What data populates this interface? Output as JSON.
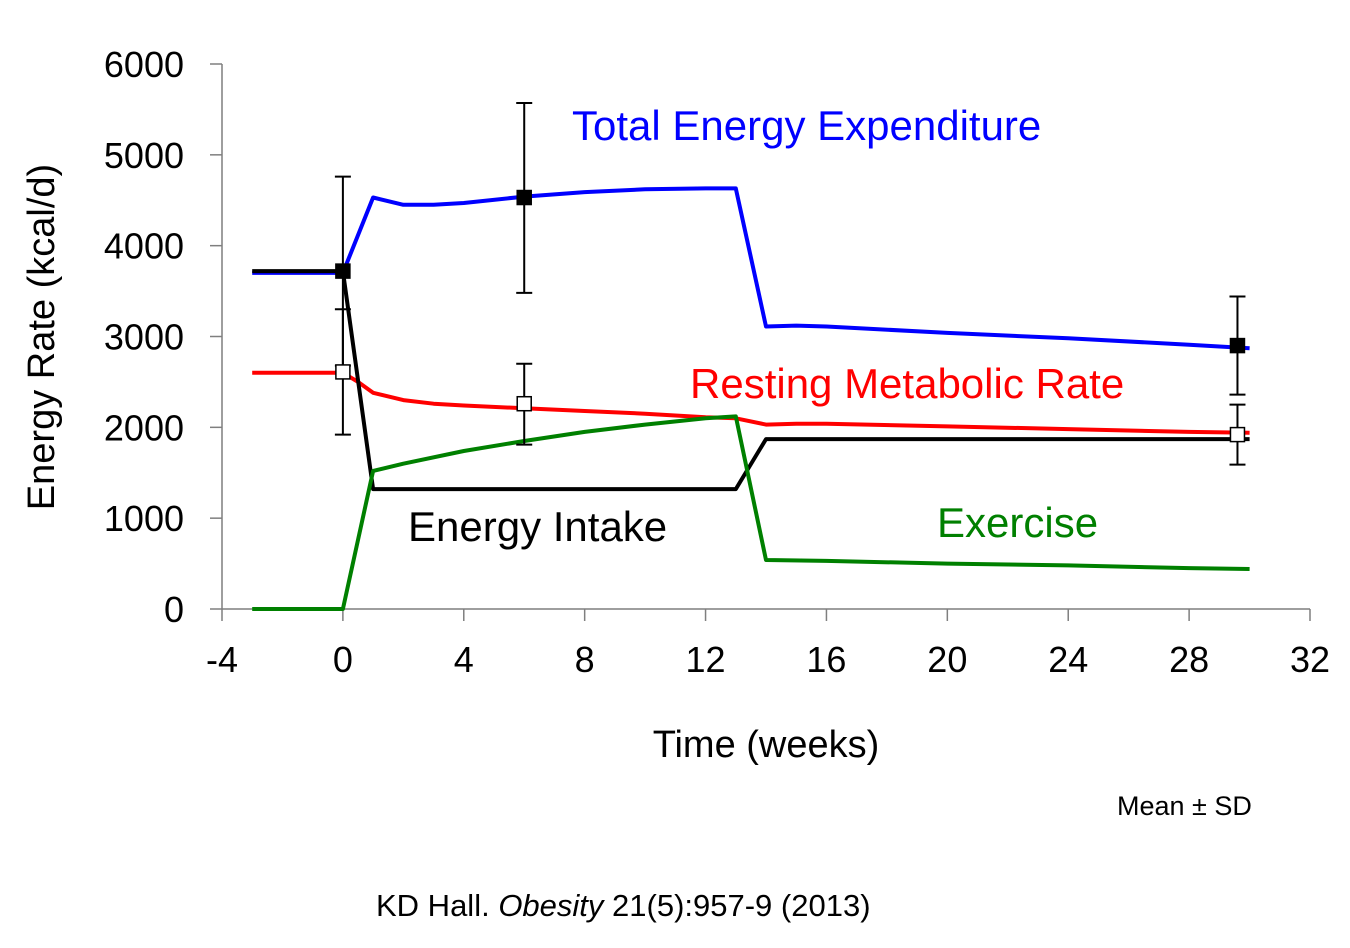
{
  "chart_data": {
    "type": "line",
    "xlabel": "Time (weeks)",
    "ylabel": "Energy Rate (kcal/d)",
    "xlim": [
      -4,
      32
    ],
    "ylim": [
      0,
      6000
    ],
    "x_ticks": [
      -4,
      0,
      4,
      8,
      12,
      16,
      20,
      24,
      28,
      32
    ],
    "y_ticks": [
      0,
      1000,
      2000,
      3000,
      4000,
      5000,
      6000
    ],
    "grid": false,
    "legend": "none (series labels placed directly on chart)",
    "series": [
      {
        "name": "Total Energy Expenditure",
        "color": "#0000ff",
        "x": [
          -3,
          0,
          1,
          2,
          3,
          4,
          6,
          8,
          10,
          12,
          13,
          14,
          15,
          16,
          20,
          24,
          28,
          30
        ],
        "y": [
          3700,
          3700,
          4530,
          4450,
          4450,
          4470,
          4540,
          4590,
          4620,
          4630,
          4630,
          3110,
          3120,
          3110,
          3040,
          2980,
          2910,
          2870
        ]
      },
      {
        "name": "Resting Metabolic Rate",
        "color": "#ff0000",
        "x": [
          -3,
          0,
          0.5,
          1,
          2,
          3,
          4,
          6,
          8,
          10,
          12,
          13,
          14,
          15,
          16,
          20,
          24,
          28,
          30
        ],
        "y": [
          2600,
          2600,
          2500,
          2380,
          2300,
          2260,
          2240,
          2210,
          2180,
          2150,
          2110,
          2100,
          2030,
          2040,
          2040,
          2010,
          1980,
          1950,
          1940
        ]
      },
      {
        "name": "Energy Intake",
        "color": "#000000",
        "x": [
          -3,
          0,
          1,
          13,
          14,
          30
        ],
        "y": [
          3720,
          3720,
          1320,
          1320,
          1870,
          1870
        ]
      },
      {
        "name": "Exercise",
        "color": "#008000",
        "x": [
          -3,
          0,
          1,
          2,
          4,
          6,
          8,
          10,
          12,
          13,
          14,
          16,
          20,
          24,
          28,
          30
        ],
        "y": [
          0,
          0,
          1520,
          1600,
          1740,
          1850,
          1950,
          2030,
          2100,
          2120,
          540,
          530,
          500,
          480,
          450,
          440
        ]
      }
    ],
    "measurements": [
      {
        "series": "Total Energy Expenditure",
        "marker": "filled-square",
        "x": 0,
        "y": 3720,
        "sd_low": 2680,
        "sd_high": 4760
      },
      {
        "series": "Total Energy Expenditure",
        "marker": "filled-square",
        "x": 6,
        "y": 4530,
        "sd_low": 3480,
        "sd_high": 5570
      },
      {
        "series": "Total Energy Expenditure",
        "marker": "filled-square",
        "x": 29.6,
        "y": 2900,
        "sd_low": 2360,
        "sd_high": 3440
      },
      {
        "series": "Resting Metabolic Rate",
        "marker": "open-square",
        "x": 0,
        "y": 2610,
        "sd_low": 1920,
        "sd_high": 3300
      },
      {
        "series": "Resting Metabolic Rate",
        "marker": "open-square",
        "x": 6,
        "y": 2260,
        "sd_low": 1810,
        "sd_high": 2700
      },
      {
        "series": "Resting Metabolic Rate",
        "marker": "open-square",
        "x": 29.6,
        "y": 1920,
        "sd_low": 1590,
        "sd_high": 2250
      }
    ],
    "annotation": "Mean  ± SD",
    "citation": {
      "prefix": "KD Hall. ",
      "journal": "Obesity",
      "suffix": " 21(5):957-9 (2013)"
    }
  }
}
